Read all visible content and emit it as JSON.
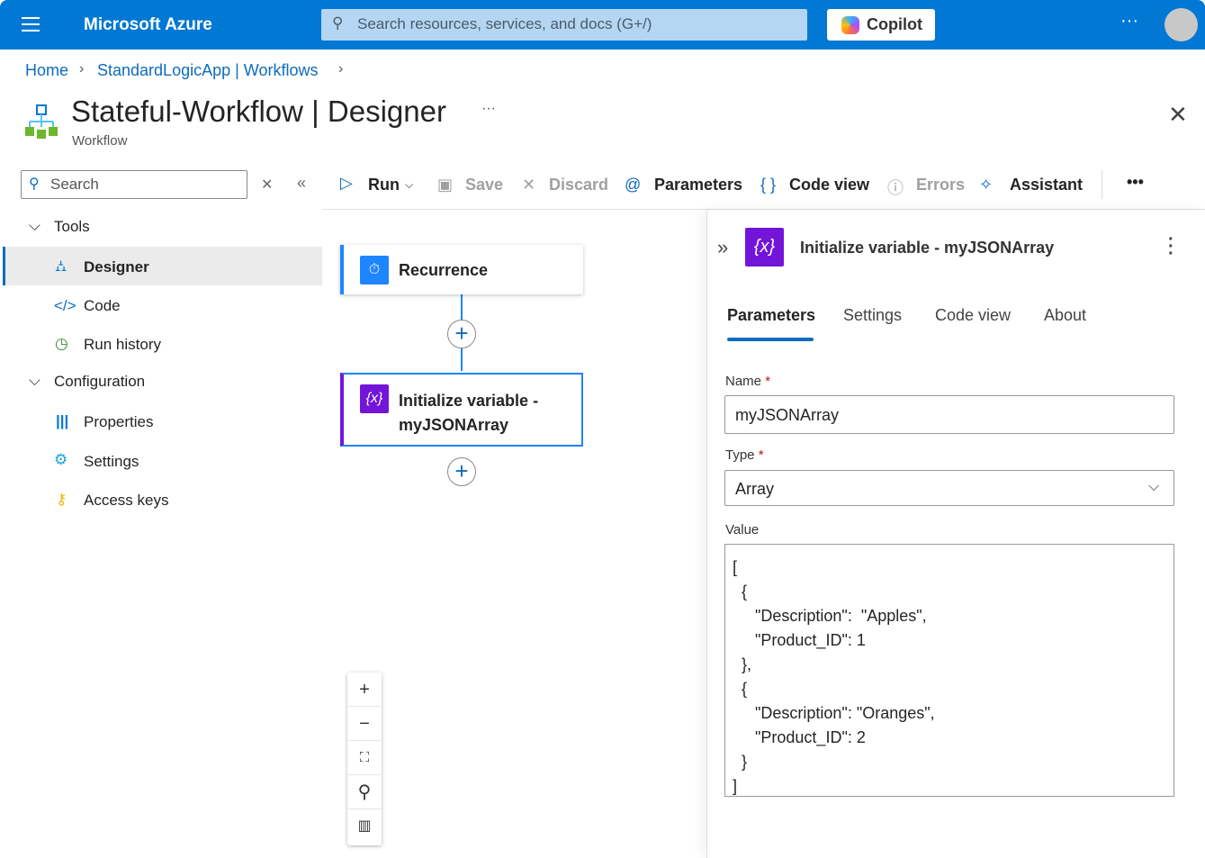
{
  "header": {
    "brand": "Microsoft Azure",
    "search_placeholder": "Search resources, services, and docs (G+/)",
    "copilot": "Copilot",
    "more": "···"
  },
  "breadcrumb": [
    "Home",
    "StandardLogicApp | Workflows"
  ],
  "page": {
    "title": "Stateful-Workflow | Designer",
    "subtitle": "Workflow",
    "more": "···"
  },
  "sidebar": {
    "search_placeholder": "Search",
    "groups": [
      {
        "label": "Tools",
        "items": [
          "Designer",
          "Code",
          "Run history"
        ]
      },
      {
        "label": "Configuration",
        "items": [
          "Properties",
          "Settings",
          "Access keys"
        ]
      }
    ]
  },
  "toolbar": {
    "run": "Run",
    "save": "Save",
    "discard": "Discard",
    "parameters": "Parameters",
    "code_view": "Code view",
    "errors": "Errors",
    "assistant": "Assistant"
  },
  "canvas": {
    "nodes": [
      "Recurrence",
      "Initialize variable - myJSONArray"
    ]
  },
  "panel": {
    "title": "Initialize variable - myJSONArray",
    "tabs": [
      "Parameters",
      "Settings",
      "Code view",
      "About"
    ],
    "active_tab": "Parameters",
    "name_label": "Name",
    "name_value": "myJSONArray",
    "type_label": "Type",
    "type_value": "Array",
    "value_label": "Value",
    "value": "[\n  {\n     \"Description\":  \"Apples\",\n     \"Product_ID\": 1\n  },\n  {\n     \"Description\": \"Oranges\",\n     \"Product_ID\": 2\n  }\n]",
    "required_mark": "*"
  },
  "colors": {
    "brand": "#0078d4",
    "accent": "#0f6cbd",
    "variable": "#7314d9",
    "trigger": "#1f85ff"
  }
}
